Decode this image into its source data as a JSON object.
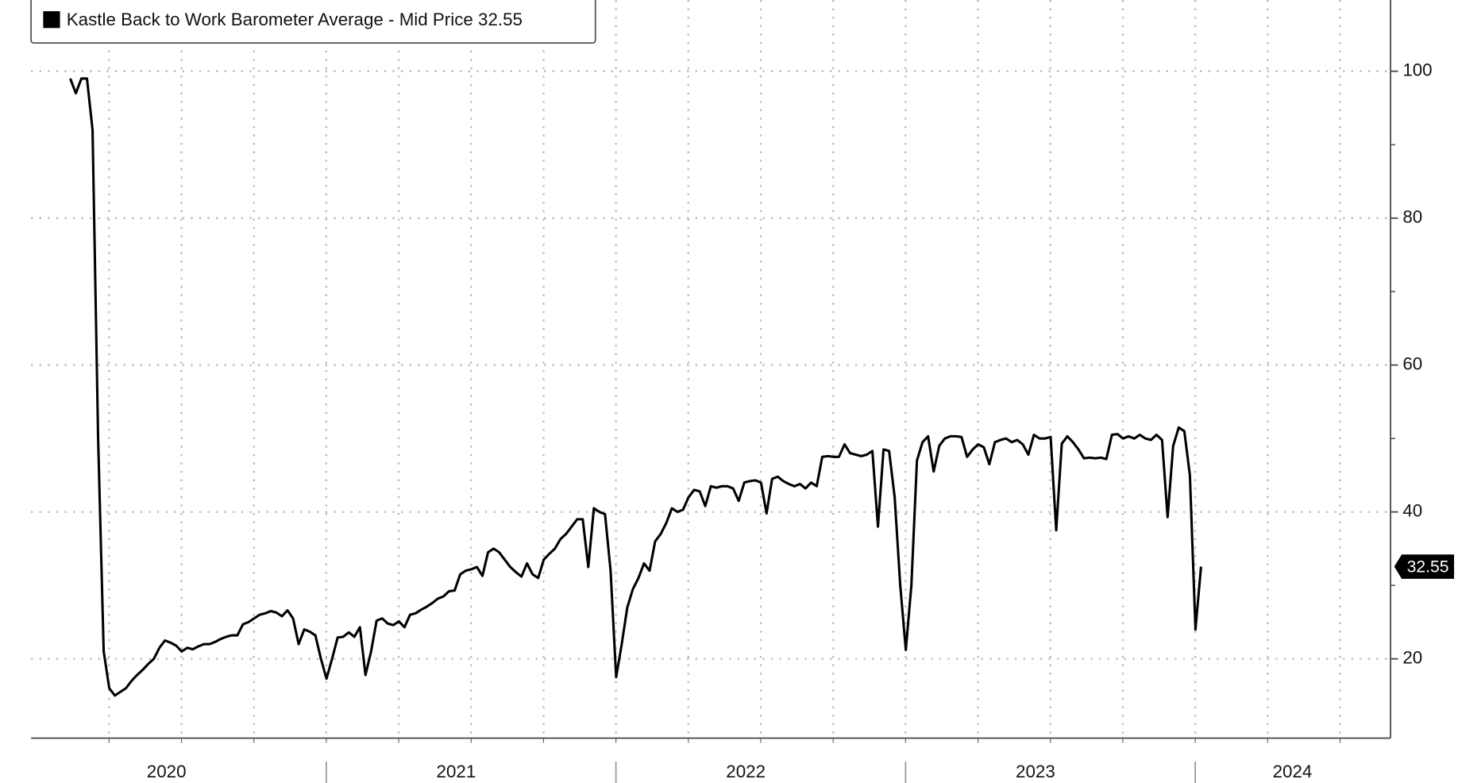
{
  "chart_data": {
    "type": "line",
    "x_labels": [
      "2020",
      "2021",
      "2022",
      "2023",
      "2024"
    ],
    "series": [
      {
        "name": "Kastle Back to Work Barometer Average - Mid Price",
        "color": "#000000",
        "values": [
          99,
          97,
          99,
          99,
          92,
          50,
          21,
          16,
          15,
          15.5,
          16,
          17,
          17.8,
          18.5,
          19.3,
          20,
          21.5,
          22.5,
          22.2,
          21.8,
          21,
          21.5,
          21.3,
          21.7,
          22,
          22,
          22.3,
          22.7,
          23,
          23.2,
          23.2,
          24.7,
          25,
          25.5,
          26,
          26.2,
          26.5,
          26.3,
          25.8,
          26.6,
          25.5,
          22,
          24,
          23.7,
          23.2,
          20,
          17.3,
          20,
          22.9,
          23,
          23.6,
          23,
          24.3,
          17.8,
          21,
          25.2,
          25.5,
          24.8,
          24.6,
          25.1,
          24.3,
          26,
          26.2,
          26.7,
          27.1,
          27.6,
          28.2,
          28.5,
          29.2,
          29.3,
          31.5,
          32,
          32.2,
          32.5,
          31.3,
          34.5,
          35,
          34.5,
          33.5,
          32.5,
          31.8,
          31.2,
          33,
          31.5,
          31,
          33.5,
          34.3,
          35,
          36.3,
          37,
          38,
          39,
          39,
          32.5,
          40.5,
          40,
          39.7,
          32,
          17.5,
          22,
          27,
          29.5,
          31,
          33,
          32,
          36,
          37,
          38.5,
          40.5,
          40,
          40.3,
          42,
          43,
          42.8,
          40.8,
          43.5,
          43.3,
          43.5,
          43.5,
          43.2,
          41.5,
          44,
          44.2,
          44.3,
          44,
          39.8,
          44.5,
          44.8,
          44.2,
          43.8,
          43.5,
          43.8,
          43.2,
          44,
          43.5,
          47.5,
          47.6,
          47.5,
          47.5,
          49.2,
          48,
          47.8,
          47.6,
          47.8,
          48.3,
          38,
          48.5,
          48.3,
          42,
          30,
          21.2,
          30,
          47,
          49.5,
          50.3,
          45.5,
          49,
          50,
          50.3,
          50.3,
          50.2,
          47.5,
          48.5,
          49.2,
          48.8,
          46.5,
          49.5,
          49.8,
          50,
          49.5,
          49.8,
          49.2,
          47.8,
          50.5,
          50,
          50,
          50.2,
          37.5,
          49.3,
          50.3,
          49.5,
          48.5,
          47.3,
          47.4,
          47.3,
          47.4,
          47.2,
          50.5,
          50.6,
          50,
          50.3,
          50,
          50.5,
          50,
          49.8,
          50.5,
          49.8,
          39.3,
          49,
          51.5,
          51,
          45,
          24,
          32.55
        ]
      }
    ],
    "ylim": [
      9.2,
      109.7
    ],
    "yticks": [
      20,
      40,
      60,
      80,
      100
    ],
    "grid": true,
    "legend": "top-left"
  }
}
